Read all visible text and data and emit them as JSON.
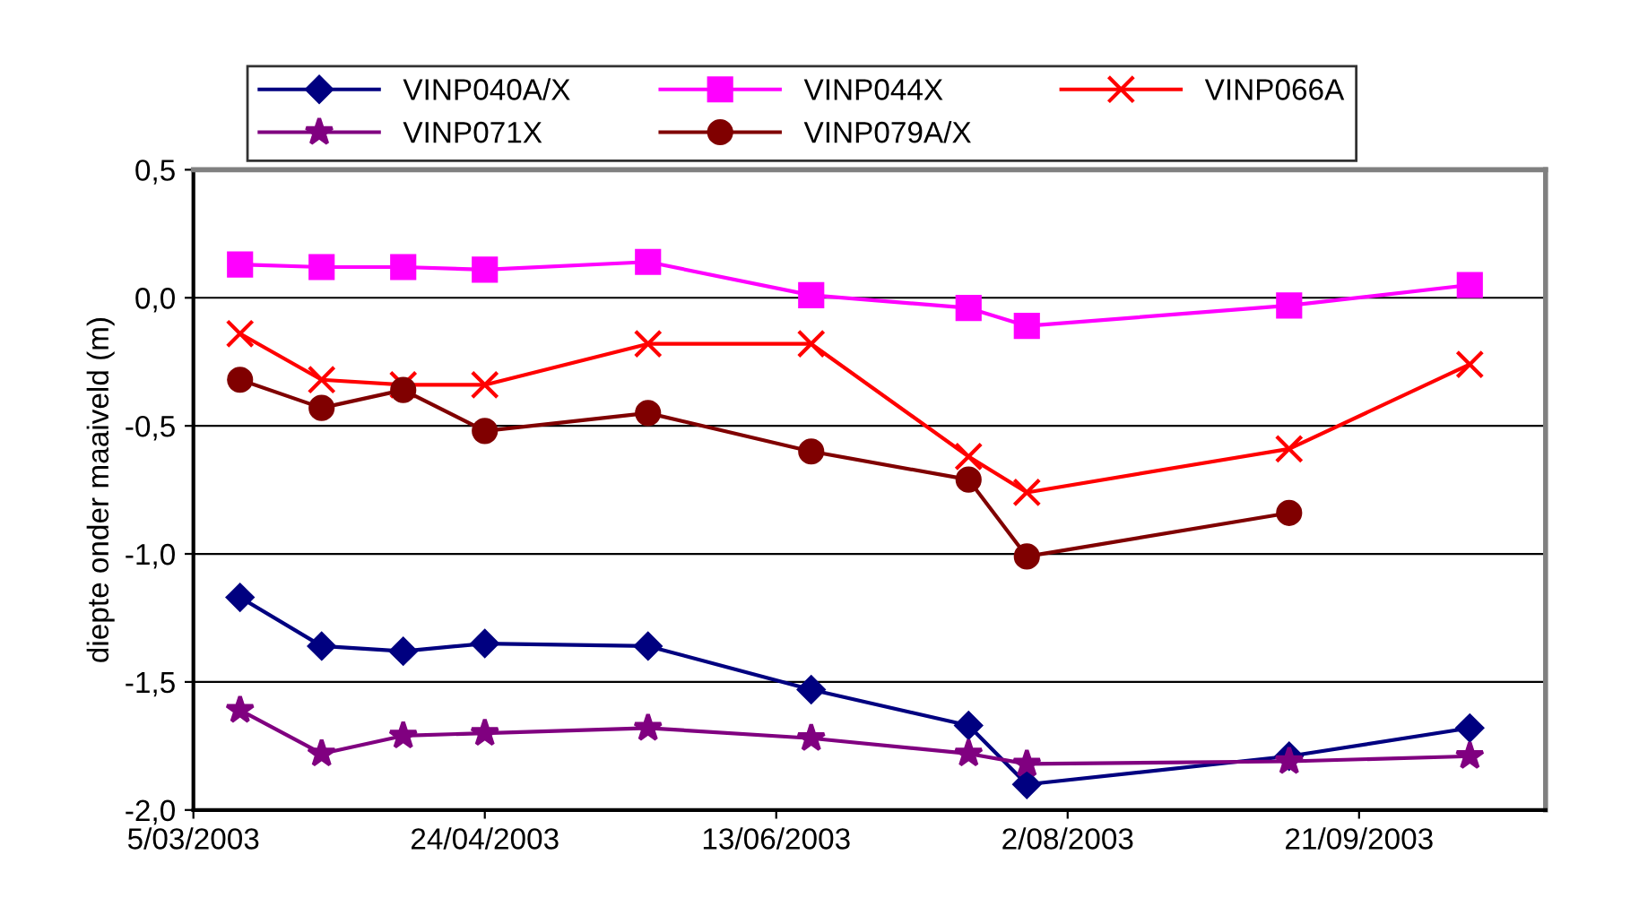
{
  "chart_data": {
    "type": "line",
    "ylabel": "diepte onder maaiveld (m)",
    "x": [
      "2003-03-13",
      "2003-03-27",
      "2003-04-10",
      "2003-04-24",
      "2003-05-22",
      "2003-06-19",
      "2003-07-16",
      "2003-07-26",
      "2003-09-09",
      "2003-10-10"
    ],
    "series": [
      {
        "name": "VINP040A/X",
        "color": "#000080",
        "marker": "diamond",
        "values": [
          -1.17,
          -1.36,
          -1.38,
          -1.35,
          -1.36,
          -1.53,
          -1.67,
          -1.9,
          -1.79,
          -1.68
        ]
      },
      {
        "name": "VINP044X",
        "color": "#ff00ff",
        "marker": "square",
        "values": [
          0.13,
          0.12,
          0.12,
          0.11,
          0.14,
          0.01,
          -0.04,
          -0.11,
          -0.03,
          0.05
        ]
      },
      {
        "name": "VINP066A",
        "color": "#ff0000",
        "marker": "cross",
        "values": [
          -0.14,
          -0.32,
          -0.34,
          -0.34,
          -0.18,
          -0.18,
          -0.62,
          -0.76,
          -0.59,
          -0.26
        ]
      },
      {
        "name": "VINP071X",
        "color": "#800080",
        "marker": "star",
        "values": [
          -1.61,
          -1.78,
          -1.71,
          -1.7,
          -1.68,
          -1.72,
          -1.78,
          -1.82,
          -1.81,
          -1.79
        ]
      },
      {
        "name": "VINP079A/X",
        "color": "#800000",
        "marker": "circle",
        "values": [
          -0.32,
          -0.43,
          -0.36,
          -0.52,
          -0.45,
          -0.6,
          -0.71,
          -1.01,
          -0.84,
          null
        ]
      }
    ],
    "xlim": [
      "2003-03-05",
      "2003-10-23"
    ],
    "xticks": [
      {
        "value": "2003-03-05",
        "label": "5/03/2003"
      },
      {
        "value": "2003-04-24",
        "label": "24/04/2003"
      },
      {
        "value": "2003-06-13",
        "label": "13/06/2003"
      },
      {
        "value": "2003-08-02",
        "label": "2/08/2003"
      },
      {
        "value": "2003-09-21",
        "label": "21/09/2003"
      }
    ],
    "ylim": [
      -2.0,
      0.5
    ],
    "yticks": [
      {
        "value": -2.0,
        "label": "-2,0"
      },
      {
        "value": -1.5,
        "label": "-1,5"
      },
      {
        "value": -1.0,
        "label": "-1,0"
      },
      {
        "value": -0.5,
        "label": "-0,5"
      },
      {
        "value": 0.0,
        "label": "0,0"
      },
      {
        "value": 0.5,
        "label": "0,5"
      }
    ],
    "grid": "y",
    "legend": "top",
    "line_style": "solid"
  }
}
